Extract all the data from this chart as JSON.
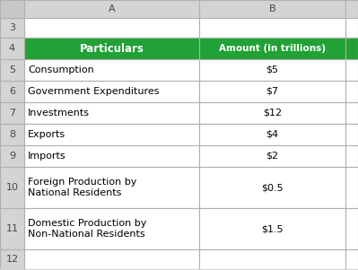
{
  "col_headers": [
    "Particulars",
    "Amount (in trillions)"
  ],
  "rows": [
    [
      "Consumption",
      "$5"
    ],
    [
      "Government Expenditures",
      "$7"
    ],
    [
      "Investments",
      "$12"
    ],
    [
      "Exports",
      "$4"
    ],
    [
      "Imports",
      "$2"
    ],
    [
      "Foreign Production by\nNational Residents",
      "$0.5"
    ],
    [
      "Domestic Production by\nNon-National Residents",
      "$1.5"
    ]
  ],
  "header_bg": "#21A136",
  "header_text": "#FFFFFF",
  "cell_bg": "#FFFFFF",
  "cell_text": "#000000",
  "fig_bg": "#D4D4D4",
  "grid_color": "#B0B0B0",
  "corner_bg": "#C8C8C8",
  "row_num_bg": "#D4D4D4",
  "col_top_bg": "#D4D4D4",
  "right_col_bg": "#E8E8E8"
}
